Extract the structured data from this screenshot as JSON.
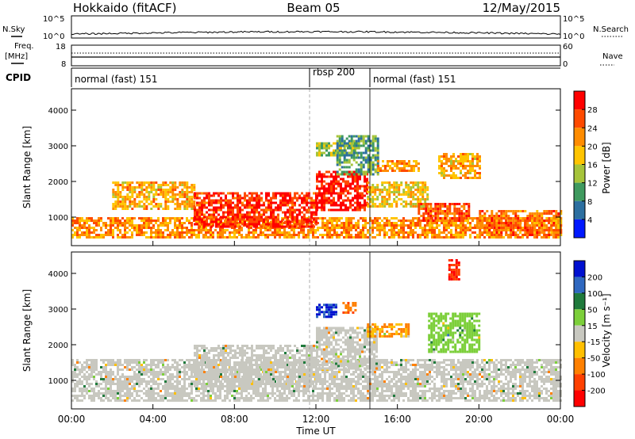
{
  "header": {
    "station": "Hokkaido (fitACF)",
    "beam": "Beam 05",
    "date": "12/May/2015"
  },
  "top_strip": {
    "left_label": "N.Sky",
    "right_label": "N.Search",
    "left_ticks": [
      "10^5",
      "10^0"
    ],
    "right_ticks": [
      "10^5",
      "10^0"
    ]
  },
  "freq_strip": {
    "label_line1": "Freq.",
    "label_line2": "[MHz]",
    "ticks": [
      "18",
      "8"
    ],
    "right_ticks": [
      "60",
      "0"
    ],
    "right_label": "Nave"
  },
  "cpid": {
    "label": "CPID",
    "segments": [
      "normal (fast) 151",
      "rbsp 200",
      "normal (fast) 151"
    ]
  },
  "axes": {
    "xlabel": "Time UT",
    "x_ticks": [
      "00:00",
      "04:00",
      "08:00",
      "12:00",
      "16:00",
      "20:00",
      "00:00"
    ],
    "ylabel": "Slant Range [km]",
    "y_ticks": [
      "1000",
      "2000",
      "3000",
      "4000"
    ]
  },
  "power_scale": {
    "label": "Power [dB]",
    "ticks": [
      "28",
      "24",
      "20",
      "16",
      "12",
      "8",
      "4"
    ],
    "colors": [
      "#ff0000",
      "#ff4a00",
      "#ff8c00",
      "#ffc400",
      "#a6c43a",
      "#3f9a5f",
      "#2c6fa0",
      "#0018ff"
    ]
  },
  "velocity_scale": {
    "label": "Velocity [m s⁻¹]",
    "ticks": [
      "200",
      "100",
      "50",
      "15",
      "-15",
      "-50",
      "-100",
      "-200"
    ],
    "colors": [
      "#0010d0",
      "#2f68c0",
      "#1f7a3c",
      "#7ccf3a",
      "#c8c8c0",
      "#ffbf00",
      "#ff8000",
      "#ff4000",
      "#ff0000"
    ]
  },
  "chart_data": [
    {
      "type": "heatmap",
      "title": "",
      "quantity": "Power [dB]",
      "xlabel": "Time UT",
      "ylabel": "Slant Range [km]",
      "xlim": [
        0,
        24
      ],
      "ylim": [
        200,
        4600
      ],
      "grid": false,
      "regions": [
        {
          "x": [
            0,
            24
          ],
          "y": [
            400,
            1000
          ],
          "value": 22
        },
        {
          "x": [
            2,
            6
          ],
          "y": [
            1200,
            2000
          ],
          "value": 20
        },
        {
          "x": [
            6,
            12
          ],
          "y": [
            700,
            1700
          ],
          "value": 28
        },
        {
          "x": [
            12,
            14.5
          ],
          "y": [
            1200,
            2300
          ],
          "value": 30
        },
        {
          "x": [
            12,
            14
          ],
          "y": [
            2700,
            3100
          ],
          "value": 14
        },
        {
          "x": [
            13,
            15
          ],
          "y": [
            2200,
            3300
          ],
          "value": 10
        },
        {
          "x": [
            14.5,
            17.5
          ],
          "y": [
            1300,
            2000
          ],
          "value": 18
        },
        {
          "x": [
            15,
            17
          ],
          "y": [
            2300,
            2600
          ],
          "value": 22
        },
        {
          "x": [
            17,
            19.5
          ],
          "y": [
            900,
            1400
          ],
          "value": 26
        },
        {
          "x": [
            18,
            20
          ],
          "y": [
            2100,
            2800
          ],
          "value": 20
        },
        {
          "x": [
            20,
            24
          ],
          "y": [
            500,
            1200
          ],
          "value": 24
        }
      ]
    },
    {
      "type": "heatmap",
      "title": "",
      "quantity": "Velocity [m s⁻¹]",
      "xlabel": "Time UT",
      "ylabel": "Slant Range [km]",
      "xlim": [
        0,
        24
      ],
      "ylim": [
        200,
        4600
      ],
      "grid": false,
      "regions": [
        {
          "x": [
            0,
            24
          ],
          "y": [
            400,
            1600
          ],
          "value": 0
        },
        {
          "x": [
            6,
            12
          ],
          "y": [
            800,
            2000
          ],
          "value": 0
        },
        {
          "x": [
            12,
            15
          ],
          "y": [
            1300,
            2500
          ],
          "value": 0
        },
        {
          "x": [
            12,
            13
          ],
          "y": [
            2800,
            3150
          ],
          "value": 200
        },
        {
          "x": [
            13.3,
            14
          ],
          "y": [
            2900,
            3200
          ],
          "value": -100
        },
        {
          "x": [
            14.5,
            16.5
          ],
          "y": [
            2200,
            2600
          ],
          "value": -50
        },
        {
          "x": [
            17.5,
            20
          ],
          "y": [
            1800,
            2900
          ],
          "value": 30
        },
        {
          "x": [
            18.5,
            19
          ],
          "y": [
            3800,
            4400
          ],
          "value": -200
        }
      ]
    }
  ]
}
